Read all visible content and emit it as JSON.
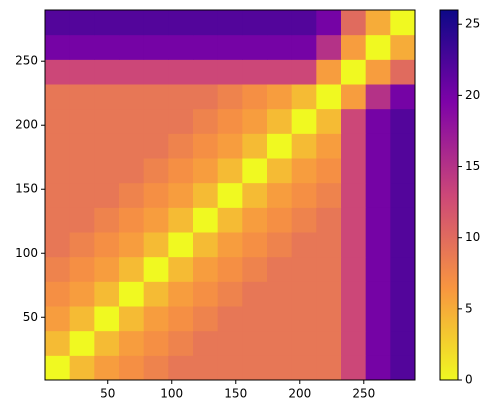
{
  "chart_data": {
    "type": "heatmap",
    "xlim": [
      1,
      290
    ],
    "ylim": [
      1,
      290
    ],
    "xticks": [
      50,
      100,
      150,
      200,
      250
    ],
    "yticks": [
      50,
      100,
      150,
      200,
      250
    ],
    "colormap": [
      "#f0f921",
      "#f89540",
      "#cc4778",
      "#7e03a8",
      "#0d0887"
    ],
    "colorbar_lim": [
      0,
      26
    ],
    "colorbar_ticks": [
      0,
      5,
      10,
      15,
      20,
      25
    ],
    "z": [
      [
        0,
        4,
        6,
        7,
        8,
        9,
        9,
        9,
        9,
        9,
        9,
        9,
        13,
        20,
        22
      ],
      [
        4,
        0,
        4,
        6,
        7,
        8,
        9,
        9,
        9,
        9,
        9,
        9,
        13,
        20,
        22
      ],
      [
        6,
        4,
        0,
        4,
        6,
        7,
        8,
        9,
        9,
        9,
        9,
        9,
        13,
        20,
        22
      ],
      [
        7,
        6,
        4,
        0,
        4,
        6,
        7,
        8,
        9,
        9,
        9,
        9,
        13,
        20,
        22
      ],
      [
        8,
        7,
        6,
        4,
        0,
        4,
        6,
        7,
        8,
        9,
        9,
        9,
        13,
        20,
        22
      ],
      [
        9,
        8,
        7,
        6,
        4,
        0,
        4,
        6,
        7,
        8,
        9,
        9,
        13,
        20,
        22
      ],
      [
        9,
        9,
        8,
        7,
        6,
        4,
        0,
        4,
        6,
        7,
        8,
        9,
        13,
        20,
        22
      ],
      [
        9,
        9,
        9,
        8,
        7,
        6,
        4,
        0,
        4,
        6,
        7,
        8,
        13,
        20,
        22
      ],
      [
        9,
        9,
        9,
        9,
        8,
        7,
        6,
        4,
        0,
        4,
        6,
        7,
        13,
        20,
        22
      ],
      [
        9,
        9,
        9,
        9,
        9,
        8,
        7,
        6,
        4,
        0,
        4,
        6,
        13,
        20,
        22
      ],
      [
        9,
        9,
        9,
        9,
        9,
        9,
        8,
        7,
        6,
        4,
        0,
        4,
        13,
        20,
        22
      ],
      [
        9,
        9,
        9,
        9,
        9,
        9,
        9,
        8,
        7,
        6,
        4,
        0,
        6,
        15,
        20
      ],
      [
        13,
        13,
        13,
        13,
        13,
        13,
        13,
        13,
        13,
        13,
        13,
        6,
        0,
        6,
        10
      ],
      [
        20,
        20,
        20,
        20,
        20,
        20,
        20,
        20,
        20,
        20,
        20,
        15,
        6,
        0,
        5
      ],
      [
        22,
        22,
        22,
        22,
        22,
        22,
        22,
        22,
        22,
        22,
        22,
        20,
        10,
        5,
        0
      ]
    ]
  }
}
